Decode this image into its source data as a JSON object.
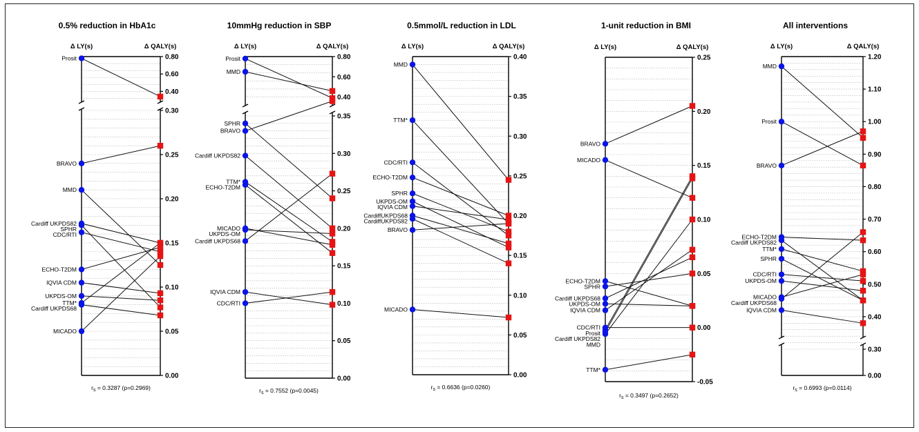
{
  "chart_data": [
    {
      "type": "line",
      "title": "0.5% reduction in HbA1c",
      "left_axis_label": "Δ LY(s)",
      "right_axis_label": "Δ QALY(s)",
      "ticks": [
        "0.00",
        "0.05",
        "0.10",
        "0.15",
        "0.20",
        "0.25",
        "0.30",
        "0.40",
        "0.60",
        "0.80"
      ],
      "axis_break_between": [
        "0.30",
        "0.40"
      ],
      "annotation_prefix": "r",
      "annotation_sub": "s",
      "annotation": " = 0.3287 (p=0.2969)",
      "series": [
        {
          "name": "Prosit",
          "ly": 0.78,
          "qaly": 0.34
        },
        {
          "name": "BRAVO",
          "ly": 0.24,
          "qaly": 0.26
        },
        {
          "name": "MMD",
          "ly": 0.21,
          "qaly": 0.125
        },
        {
          "name": "Cardiff UKPDS82",
          "ly": 0.172,
          "qaly": 0.15
        },
        {
          "name": "SPHR",
          "ly": 0.17,
          "qaly": 0.077
        },
        {
          "name": "CDC/RTI",
          "ly": 0.162,
          "qaly": 0.14
        },
        {
          "name": "ECHO-T2DM",
          "ly": 0.12,
          "qaly": 0.145
        },
        {
          "name": "IQVIA CDM",
          "ly": 0.105,
          "qaly": 0.093
        },
        {
          "name": "UKPDS-OM",
          "ly": 0.09,
          "qaly": 0.085
        },
        {
          "name": "TTM*",
          "ly": 0.082,
          "qaly": 0.15
        },
        {
          "name": "Cardiff UKPDS68",
          "ly": 0.08,
          "qaly": 0.068
        },
        {
          "name": "MICADO",
          "ly": 0.05,
          "qaly": 0.135
        }
      ]
    },
    {
      "type": "line",
      "title": "10mmHg reduction in SBP",
      "left_axis_label": "Δ LY(s)",
      "right_axis_label": "Δ QALY(s)",
      "ticks": [
        "0.00",
        "0.05",
        "0.10",
        "0.15",
        "0.20",
        "0.25",
        "0.30",
        "0.35",
        "0.40",
        "0.60",
        "0.80"
      ],
      "axis_break_between": [
        "0.35",
        "0.40"
      ],
      "annotation_prefix": "r",
      "annotation_sub": "s",
      "annotation": " = 0.7552 (p=0.0045)",
      "series": [
        {
          "name": "Prosit",
          "ly": 0.78,
          "qaly": 0.39
        },
        {
          "name": "MMD",
          "ly": 0.65,
          "qaly": 0.46
        },
        {
          "name": "SPHR",
          "ly": 0.34,
          "qaly": 0.24
        },
        {
          "name": "BRAVO",
          "ly": 0.33,
          "qaly": 0.36
        },
        {
          "name": "Cardiff UKPDS82",
          "ly": 0.297,
          "qaly": 0.2
        },
        {
          "name": "TTM*",
          "ly": 0.262,
          "qaly": 0.182
        },
        {
          "name": "ECHO-T2DM",
          "ly": 0.258,
          "qaly": 0.167
        },
        {
          "name": "MICADO",
          "ly": 0.2,
          "qaly": 0.178
        },
        {
          "name": "UKPDS-OM",
          "ly": 0.198,
          "qaly": 0.193
        },
        {
          "name": "Cardiff UKPDS68",
          "ly": 0.183,
          "qaly": 0.273
        },
        {
          "name": "IQVIA CDM",
          "ly": 0.115,
          "qaly": 0.098
        },
        {
          "name": "CDC/RTI",
          "ly": 0.1,
          "qaly": 0.115
        }
      ]
    },
    {
      "type": "line",
      "title": "0.5mmol/L reduction in LDL",
      "left_axis_label": "Δ LY(s)",
      "right_axis_label": "Δ QALY(s)",
      "ticks": [
        "0.00",
        "0.05",
        "0.10",
        "0.15",
        "0.20",
        "0.25",
        "0.30",
        "0.35",
        "0.40"
      ],
      "annotation_prefix": "r",
      "annotation_sub": "s",
      "annotation": " = 0.6636 (p=0.0260)",
      "series": [
        {
          "name": "MMD",
          "ly": 0.39,
          "qaly": 0.245
        },
        {
          "name": "TTM*",
          "ly": 0.32,
          "qaly": 0.19
        },
        {
          "name": "CDC/RTI",
          "ly": 0.267,
          "qaly": 0.175
        },
        {
          "name": "ECHO-T2DM",
          "ly": 0.248,
          "qaly": 0.2
        },
        {
          "name": "SPHR",
          "ly": 0.228,
          "qaly": 0.18
        },
        {
          "name": "UKPDS-OM",
          "ly": 0.218,
          "qaly": 0.16
        },
        {
          "name": "IQVIA CDM",
          "ly": 0.212,
          "qaly": 0.195
        },
        {
          "name": "CardiffUKPDS68",
          "ly": 0.2,
          "qaly": 0.165
        },
        {
          "name": "CardiffUKPDS82",
          "ly": 0.196,
          "qaly": 0.14
        },
        {
          "name": "BRAVO",
          "ly": 0.182,
          "qaly": 0.19
        },
        {
          "name": "MICADO",
          "ly": 0.082,
          "qaly": 0.072
        }
      ]
    },
    {
      "type": "line",
      "title": "1-unit reduction in BMI",
      "left_axis_label": "Δ LY(s)",
      "right_axis_label": "Δ QALY(s)",
      "ticks": [
        "-0.05",
        "0.00",
        "0.05",
        "0.10",
        "0.15",
        "0.20",
        "0.25"
      ],
      "annotation_prefix": "r",
      "annotation_sub": "s",
      "annotation": " = 0.3497 (p=0.2652)",
      "series": [
        {
          "name": "BRAVO",
          "ly": 0.17,
          "qaly": 0.205
        },
        {
          "name": "MICADO",
          "ly": 0.155,
          "qaly": 0.12
        },
        {
          "name": "ECHO-T2DM",
          "ly": 0.043,
          "qaly": 0.02
        },
        {
          "name": "SPHR",
          "ly": 0.038,
          "qaly": 0.05
        },
        {
          "name": "Cardiff UKPDS68",
          "ly": 0.027,
          "qaly": 0.065
        },
        {
          "name": "UKPDS-OM",
          "ly": 0.022,
          "qaly": 0.02
        },
        {
          "name": "IQVIA CDM",
          "ly": 0.016,
          "qaly": 0.072
        },
        {
          "name": "CDC/RTI",
          "ly": 0.0,
          "qaly": 0.0
        },
        {
          "name": "Prosit",
          "ly": -0.002,
          "qaly": 0.14
        },
        {
          "name": "Cardiff UKPDS82",
          "ly": -0.004,
          "qaly": 0.138
        },
        {
          "name": "MMD",
          "ly": -0.006,
          "qaly": 0.1
        },
        {
          "name": "TTM*",
          "ly": -0.039,
          "qaly": -0.025
        }
      ]
    },
    {
      "type": "line",
      "title": "All interventions",
      "left_axis_label": "Δ LY(s)",
      "right_axis_label": "Δ QALY(s)",
      "ticks": [
        "0.00",
        "0.30",
        "0.40",
        "0.50",
        "0.60",
        "0.70",
        "0.80",
        "0.90",
        "1.00",
        "1.10",
        "1.20"
      ],
      "axis_break_between": [
        "0.00",
        "0.30"
      ],
      "annotation_prefix": "r",
      "annotation_sub": "s",
      "annotation": " = 0.6993 (p=0.0114)",
      "series": [
        {
          "name": "MMD",
          "ly": 1.17,
          "qaly": 0.95
        },
        {
          "name": "Prosit",
          "ly": 1.0,
          "qaly": 0.865
        },
        {
          "name": "BRAVO",
          "ly": 0.865,
          "qaly": 0.97
        },
        {
          "name": "ECHO-T2DM",
          "ly": 0.645,
          "qaly": 0.635
        },
        {
          "name": "Cardiff UKPDS82",
          "ly": 0.635,
          "qaly": 0.45
        },
        {
          "name": "TTM*",
          "ly": 0.608,
          "qaly": 0.54
        },
        {
          "name": "SPHR",
          "ly": 0.578,
          "qaly": 0.45
        },
        {
          "name": "CDC/RTI",
          "ly": 0.53,
          "qaly": 0.51
        },
        {
          "name": "UKPDS-OM",
          "ly": 0.51,
          "qaly": 0.48
        },
        {
          "name": "MICADO",
          "ly": 0.46,
          "qaly": 0.53
        },
        {
          "name": "Cardiff UKPDS68",
          "ly": 0.455,
          "qaly": 0.66
        },
        {
          "name": "IQVIA CDM",
          "ly": 0.42,
          "qaly": 0.38
        }
      ]
    }
  ],
  "colors": {
    "ly_marker": "#0a14e6",
    "qaly_marker": "#e61414",
    "line": "#111111",
    "grid": "#9a9a9a"
  }
}
